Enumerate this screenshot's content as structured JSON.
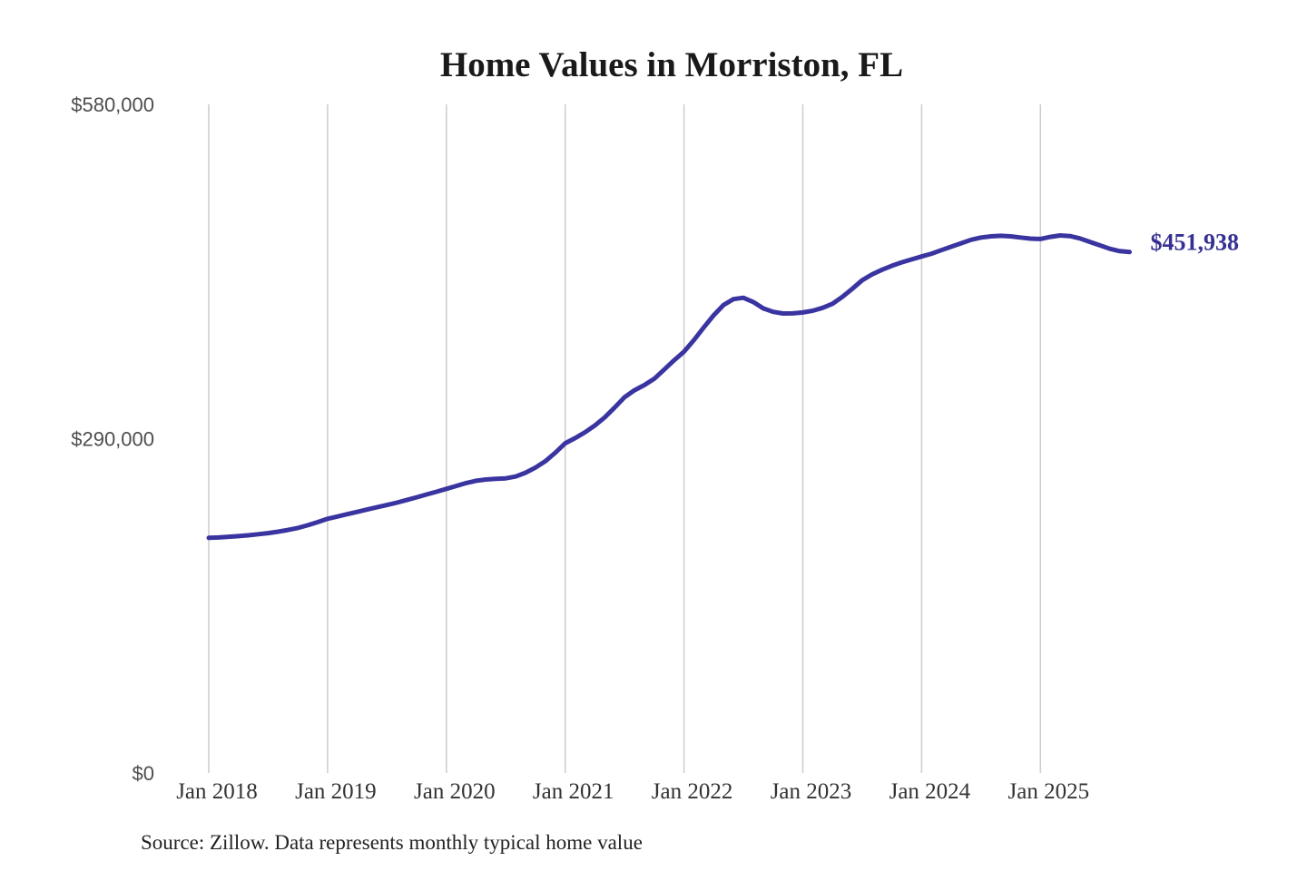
{
  "title": "Home Values in Morriston, FL",
  "source_note": "Source: Zillow. Data represents monthly typical home value",
  "colors": {
    "line": "#3a34a0",
    "end_label": "#363092",
    "gridline": "#cccccc",
    "y_label": "#4d4d4d",
    "x_label": "#333333",
    "title": "#1a1a1a",
    "source": "#222222",
    "background": "#ffffff"
  },
  "chart_data": {
    "type": "line",
    "title": "Home Values in Morriston, FL",
    "xlabel": "",
    "ylabel": "",
    "ylim": [
      0,
      580000
    ],
    "grid": "vertical-only",
    "legend": "none",
    "x_unit": "month",
    "x_start": "2018-01",
    "x_end": "2025-10",
    "x_tick_labels": [
      "Jan 2018",
      "Jan 2019",
      "Jan 2020",
      "Jan 2021",
      "Jan 2022",
      "Jan 2023",
      "Jan 2024",
      "Jan 2025"
    ],
    "x_tick_month_indices": [
      0,
      12,
      24,
      36,
      48,
      60,
      72,
      84
    ],
    "y_ticks": [
      {
        "label": "$0",
        "value": 0
      },
      {
        "label": "$290,000",
        "value": 290000
      },
      {
        "label": "$580,000",
        "value": 580000
      }
    ],
    "last_value_label": "$451,938",
    "last_value": 451938,
    "series": [
      {
        "name": "Monthly typical home value",
        "values": [
          204000,
          204300,
          204900,
          205500,
          206200,
          207100,
          208100,
          209300,
          210800,
          212600,
          214900,
          217600,
          220500,
          222500,
          224500,
          226500,
          228500,
          230500,
          232500,
          234500,
          236800,
          239200,
          241600,
          244000,
          246500,
          249000,
          251500,
          253500,
          254600,
          255100,
          255600,
          257200,
          260500,
          265000,
          270500,
          277800,
          286000,
          290500,
          295500,
          301500,
          308500,
          317000,
          326000,
          332000,
          336500,
          342000,
          350000,
          358000,
          365500,
          375500,
          386500,
          397000,
          406000,
          411000,
          412200,
          408500,
          403000,
          400000,
          398600,
          398700,
          399500,
          401000,
          403500,
          407000,
          413000,
          420000,
          427500,
          432500,
          436500,
          440000,
          443000,
          445500,
          448000,
          450500,
          453500,
          456500,
          459500,
          462500,
          464500,
          465500,
          466000,
          465500,
          464500,
          463500,
          463200,
          465000,
          466300,
          465700,
          463700,
          460700,
          457700,
          454700,
          452700,
          451938
        ]
      }
    ]
  }
}
